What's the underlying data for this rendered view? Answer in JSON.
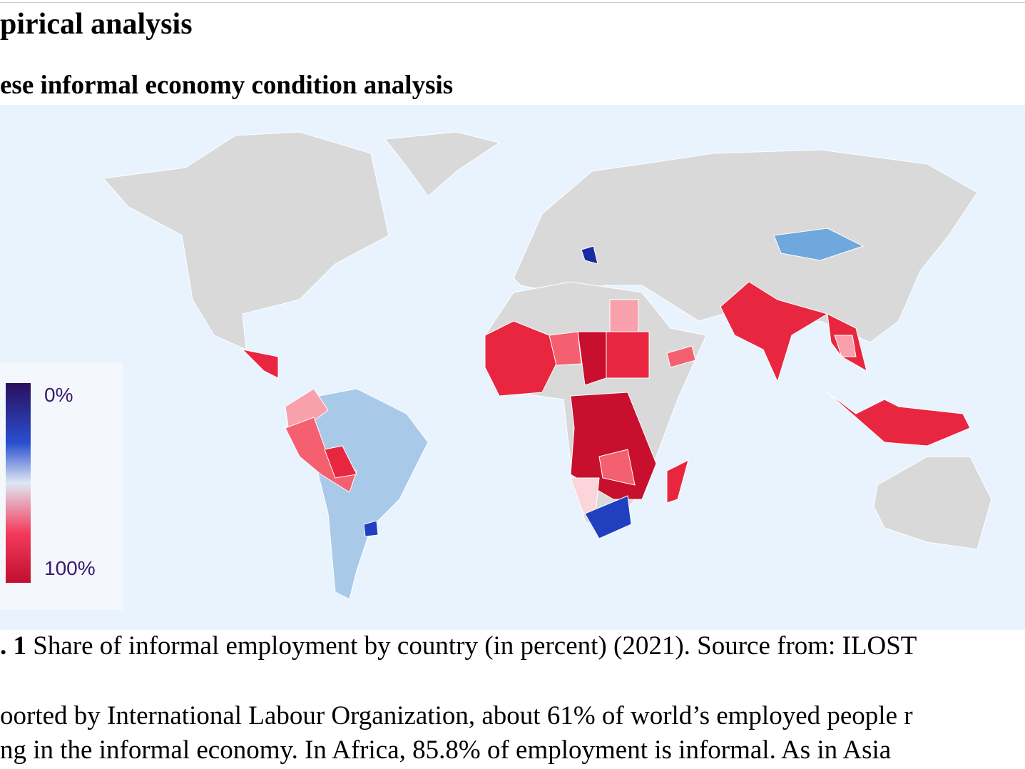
{
  "section_heading": "pirical analysis",
  "subsection_heading": "ese informal economy condition analysis",
  "figure": {
    "legend": {
      "top_label": "0%",
      "bottom_label": "100%"
    }
  },
  "caption": {
    "label": ". 1",
    "text": "Share of informal employment by country (in percent) (2021). Source from: ILOST"
  },
  "paragraph": {
    "lines": [
      "oorted by International Labour Organization, about 61% of world’s employed people r",
      "ng in the informal economy. In Africa, 85.8% of employment is informal. As in Asia"
    ]
  }
}
